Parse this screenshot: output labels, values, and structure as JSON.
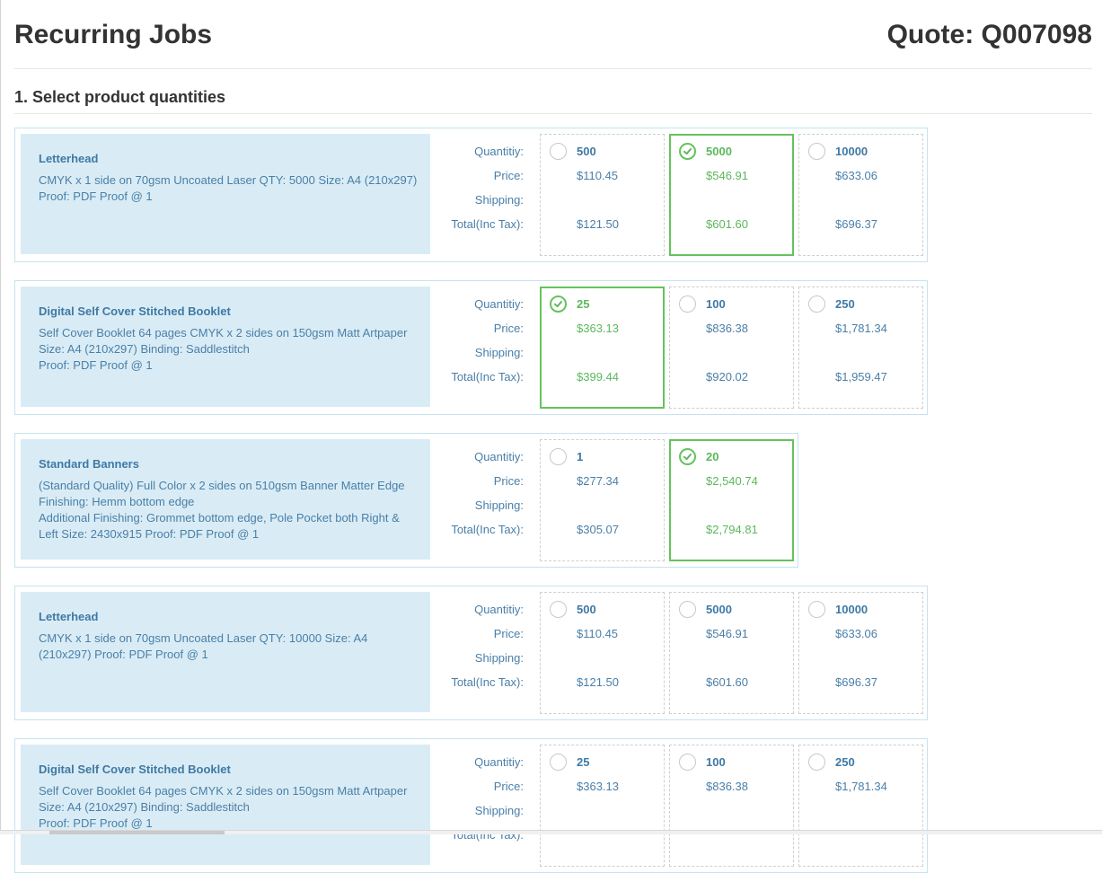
{
  "header": {
    "title": "Recurring Jobs",
    "quote": "Quote: Q007098"
  },
  "section": {
    "title": "1. Select product quantities"
  },
  "row_labels": {
    "quantity": "Quantitiy:",
    "price": "Price:",
    "shipping": "Shipping:",
    "total": "Total(Inc Tax):"
  },
  "colors": {
    "selected": "#5cb85c",
    "text_blue": "#3f79a5",
    "desc_bg": "#d9ecf5",
    "card_border": "#c5e3ef"
  },
  "products": [
    {
      "name": "Letterhead",
      "description": [
        "CMYK x 1 side on 70gsm Uncoated Laser QTY: 5000 Size: A4 (210x297)",
        "Proof: PDF Proof @ 1"
      ],
      "options": [
        {
          "qty": "500",
          "price": "$110.45",
          "total": "$121.50",
          "selected": false
        },
        {
          "qty": "5000",
          "price": "$546.91",
          "total": "$601.60",
          "selected": true
        },
        {
          "qty": "10000",
          "price": "$633.06",
          "total": "$696.37",
          "selected": false
        }
      ]
    },
    {
      "name": "Digital Self Cover Stitched Booklet",
      "description": [
        "Self Cover Booklet 64 pages CMYK x 2 sides on 150gsm Matt Artpaper",
        "Size: A4 (210x297) Binding: Saddlestitch",
        "Proof: PDF Proof @ 1"
      ],
      "options": [
        {
          "qty": "25",
          "price": "$363.13",
          "total": "$399.44",
          "selected": true
        },
        {
          "qty": "100",
          "price": "$836.38",
          "total": "$920.02",
          "selected": false
        },
        {
          "qty": "250",
          "price": "$1,781.34",
          "total": "$1,959.47",
          "selected": false
        }
      ]
    },
    {
      "name": "Standard Banners",
      "description": [
        "(Standard Quality) Full Color x 2 sides on 510gsm Banner Matter Edge",
        "Finishing: Hemm bottom edge",
        "Additional Finishing: Grommet bottom edge, Pole Pocket both Right &",
        "Left Size: 2430x915 Proof: PDF Proof @ 1"
      ],
      "options": [
        {
          "qty": "1",
          "price": "$277.34",
          "total": "$305.07",
          "selected": false
        },
        {
          "qty": "20",
          "price": "$2,540.74",
          "total": "$2,794.81",
          "selected": true
        }
      ]
    },
    {
      "name": "Letterhead",
      "description": [
        "CMYK x 1 side on 70gsm Uncoated Laser QTY: 10000 Size: A4",
        "(210x297) Proof: PDF Proof @ 1"
      ],
      "options": [
        {
          "qty": "500",
          "price": "$110.45",
          "total": "$121.50",
          "selected": false
        },
        {
          "qty": "5000",
          "price": "$546.91",
          "total": "$601.60",
          "selected": false
        },
        {
          "qty": "10000",
          "price": "$633.06",
          "total": "$696.37",
          "selected": false
        }
      ]
    },
    {
      "name": "Digital Self Cover Stitched Booklet",
      "description": [
        "Self Cover Booklet 64 pages CMYK x 2 sides on 150gsm Matt Artpaper",
        "Size: A4 (210x297) Binding: Saddlestitch",
        "Proof: PDF Proof @ 1"
      ],
      "options": [
        {
          "qty": "25",
          "price": "$363.13",
          "total": "",
          "selected": false
        },
        {
          "qty": "100",
          "price": "$836.38",
          "total": "",
          "selected": false
        },
        {
          "qty": "250",
          "price": "$1,781.34",
          "total": "",
          "selected": false
        }
      ]
    }
  ]
}
